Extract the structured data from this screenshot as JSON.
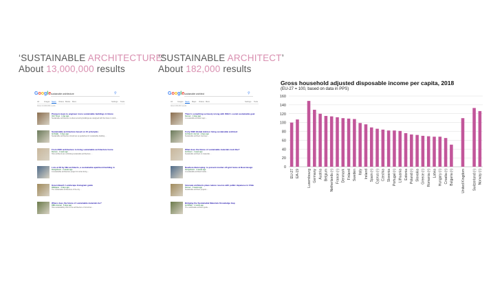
{
  "heading_left": {
    "q_prefix": "‘SUSTAINABLE ",
    "q_pink": "ARCHITECTURE",
    "q_suffix": "’",
    "r_prefix": "About ",
    "r_pink": "13,000,000",
    "r_suffix": " results"
  },
  "heading_right": {
    "q_prefix": "‘SUSTAINABLE ",
    "q_pink": "ARCHITECT",
    "q_suffix": "’",
    "r_prefix": "About ",
    "r_pink": "182,000",
    "r_suffix": " results"
  },
  "accent_color": "#d98fb0",
  "serp_left": {
    "query": "sustainable architecture",
    "tabs": [
      "All",
      "Images",
      "News",
      "Videos",
      "Books",
      "More",
      "Settings",
      "Tools"
    ],
    "active_tab": "News",
    "count": "About 13,000,000 results",
    "results": [
      {
        "title": "Pioneers keen to engineer more sustainable buildings in future",
        "url": "Irish Times · 1 day ago",
        "desc": "Sustainable architecture is about ensuring buildings are designed with the future in mind ..."
      },
      {
        "title": "Sustainable architecture based on 10 principles",
        "url": "Archdaily · 3 days ago",
        "desc": "Sustainable architecture should set up guidelines for sustainable building ..."
      },
      {
        "title": "From 2020 architecture to living sustainable architecture home",
        "url": "Dezeen · 1 week ago",
        "desc": "How architects are rethinking sustainable architecture ..."
      },
      {
        "title": "Lots at 48 by 0Bx architects, a sustainable apartment building in",
        "url": "Designboom · 2 weeks ago",
        "desc": "A sustainable architecture project for urban living ..."
      },
      {
        "title": "Green Beach: Landscape Instagram guide",
        "url": "Wallpaper · 3 days ago",
        "desc": "The sustainable architecture of the city ..."
      },
      {
        "title": "Where does the future of sustainable materials lie?",
        "url": "RIBA Journal · 5 days ago",
        "desc": "How sustainability informs the architecture of tomorrow ..."
      }
    ]
  },
  "serp_right": {
    "query": "sustainable architect",
    "tabs": [
      "All",
      "Images",
      "News",
      "Maps",
      "Videos",
      "More",
      "Settings",
      "Tools"
    ],
    "active_tab": "News",
    "count": "About 182,000 results",
    "results": [
      {
        "title": "There's something seriously wrong with IKEA's social sustainable goal",
        "url": "Dezeen · 2 days ago",
        "desc": "A sustainable architect says ..."
      },
      {
        "title": "Forty 2020 Global Advisor living sustainable architect",
        "url": "Architects' Journal · 4 days ago",
        "desc": "Sustainable architect interview ..."
      },
      {
        "title": "What does the future of sustainable materials look like?",
        "url": "Archinect · 1 week ago",
        "desc": "Sustainable architect on materials ..."
      },
      {
        "title": "Nowhere Buncoping: to prevent murder off-grid home at Boat design",
        "url": "Designboom · 2 weeks ago",
        "desc": "A sustainable architect builds ..."
      },
      {
        "title": "Innovate architects place nature reserve with public Japanese in Chile",
        "url": "Dezeen · 3 weeks ago",
        "desc": "Sustainable architect projects ..."
      },
      {
        "title": "Bridging the Sustainable Materials Knowledge Gap",
        "url": "ArchDaily · 1 month ago",
        "desc": "The sustainable architect guide ..."
      }
    ]
  },
  "chart_data": {
    "type": "bar",
    "title": "Gross household adjusted disposable income per capita, 2018",
    "subtitle": "(EU-27 = 100, based on data in PPS)",
    "xlabel": "",
    "ylabel": "",
    "ylim": [
      0,
      160
    ],
    "yticks": [
      0,
      20,
      40,
      60,
      80,
      100,
      120,
      140,
      160
    ],
    "grid": true,
    "bar_color": "#c2569a",
    "categories": [
      "EU-27",
      "EA-19",
      "",
      "Luxembourg",
      "Germany",
      "Austria",
      "Belgium",
      "Netherlands (¹)",
      "France (¹)",
      "Denmark",
      "Finland",
      "Sweden",
      "Italy",
      "Ireland",
      "Spain (¹)",
      "Cyprus (¹)",
      "Czechia",
      "Slovenia",
      "Portugal (¹)",
      "Lithuania",
      "Estonia",
      "Poland (¹)",
      "Slovakia",
      "Greece (¹)",
      "Romania (¹)",
      "Latvia",
      "Hungary (¹)",
      "Croatia (¹)",
      "Bulgaria (¹)",
      "",
      "United Kingdom",
      "",
      "Switzerland (¹)",
      "Norway (¹)"
    ],
    "values": [
      100,
      107,
      null,
      149,
      129,
      120,
      115,
      114,
      112,
      110,
      109,
      108,
      99,
      96,
      89,
      86,
      84,
      82,
      82,
      81,
      76,
      73,
      72,
      70,
      69,
      68,
      68,
      65,
      50,
      null,
      110,
      null,
      133,
      126
    ]
  }
}
